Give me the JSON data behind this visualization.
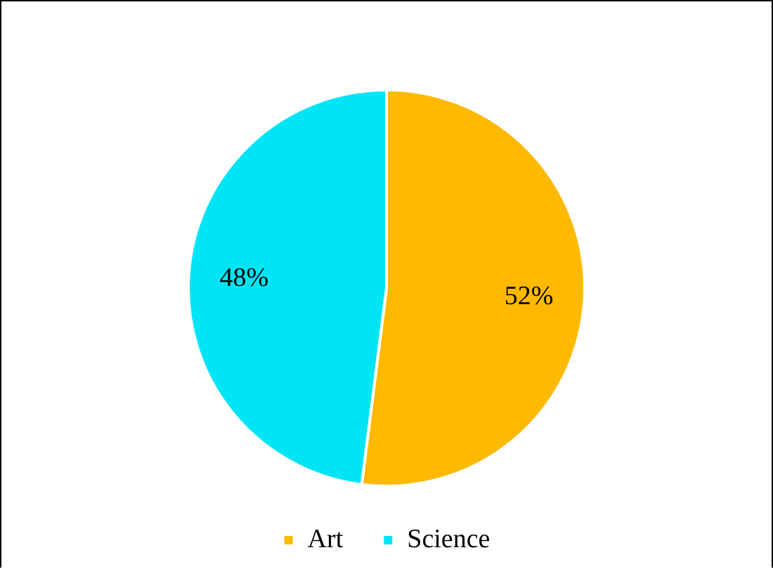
{
  "chart_data": {
    "type": "pie",
    "categories": [
      "Art",
      "Science"
    ],
    "values": [
      52,
      48
    ],
    "colors": [
      "#ffb900",
      "#00e5f5"
    ],
    "value_labels": [
      "52%",
      "48%"
    ],
    "legend": "bottom"
  }
}
